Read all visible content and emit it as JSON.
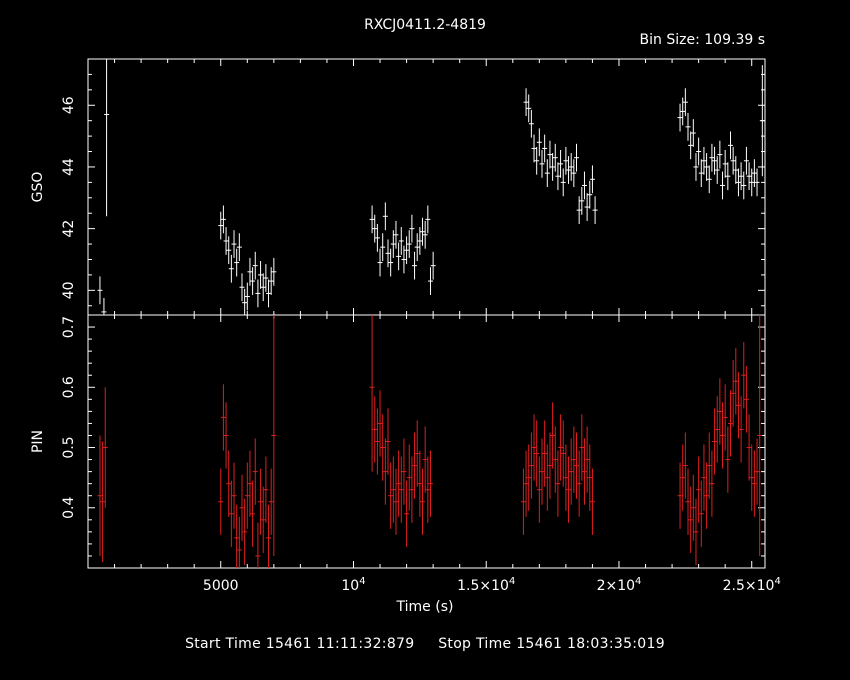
{
  "chart_data": {
    "title": "RXCJ0411.2-4819",
    "bin_size": "Bin Size: 109.39 s",
    "xlabel": "Time (s)",
    "xlim": [
      0,
      25500
    ],
    "x_ticks": [
      {
        "v": 5000,
        "m": "5000",
        "e": ""
      },
      {
        "v": 10000,
        "m": "10",
        "e": "4"
      },
      {
        "v": 15000,
        "m": "1.5×10",
        "e": "4"
      },
      {
        "v": 20000,
        "m": "2×10",
        "e": "4"
      },
      {
        "v": 25000,
        "m": "2.5×10",
        "e": "4"
      }
    ],
    "panels": [
      {
        "name": "GSO",
        "type": "scatter",
        "color": "#ffffff",
        "ylim": [
          39.2,
          47.5
        ],
        "yticks": [
          40,
          42,
          44,
          46
        ],
        "err": 0.45,
        "series": [
          {
            "x": [
              450,
              600
            ],
            "y": [
              40.0,
              39.3
            ]
          },
          {
            "x": [
              700
            ],
            "y": [
              45.7
            ],
            "err": 3.3
          },
          {
            "x": [
              5000,
              5100,
              5200,
              5300,
              5400,
              5500,
              5600,
              5700,
              5800,
              5900,
              6000,
              6100,
              6200,
              6300,
              6400,
              6500,
              6600,
              6700,
              6800,
              6900,
              7000
            ],
            "y": [
              42.1,
              42.3,
              41.6,
              41.3,
              40.7,
              41.5,
              40.9,
              41.4,
              40.1,
              39.6,
              39.8,
              40.6,
              40.3,
              40.8,
              39.9,
              40.5,
              40.1,
              40.4,
              39.9,
              40.3,
              40.6
            ]
          },
          {
            "x": [
              10700,
              10800,
              10900,
              11000,
              11100,
              11200,
              11300,
              11400,
              11500,
              11600,
              11700,
              11800,
              11900,
              12000,
              12100,
              12200,
              12300,
              12400,
              12500,
              12600,
              12700,
              12800,
              12900,
              13000
            ],
            "y": [
              42.3,
              42.0,
              41.7,
              40.9,
              41.4,
              42.4,
              41.2,
              40.9,
              41.5,
              41.8,
              41.1,
              41.6,
              41.0,
              41.3,
              41.5,
              42.0,
              40.8,
              41.4,
              41.6,
              41.9,
              41.8,
              42.3,
              40.3,
              40.8
            ]
          },
          {
            "x": [
              16500,
              16600,
              16700,
              16800,
              16900,
              17000,
              17100,
              17200,
              17300,
              17400,
              17500,
              17600,
              17700,
              17800,
              17900,
              18000,
              18100,
              18200,
              18300,
              18400,
              18500,
              18600,
              18700,
              18800,
              18900,
              19000,
              19100
            ],
            "y": [
              46.1,
              45.9,
              45.4,
              44.6,
              44.2,
              44.8,
              44.1,
              44.6,
              43.8,
              44.4,
              44.0,
              44.3,
              43.7,
              44.1,
              43.5,
              44.2,
              43.9,
              44.0,
              43.8,
              44.3,
              42.6,
              42.9,
              43.4,
              42.7,
              43.1,
              43.6,
              42.6
            ]
          },
          {
            "x": [
              22300,
              22400,
              22500,
              22600,
              22700,
              22800,
              22900,
              23000,
              23100,
              23200,
              23300,
              23400,
              23500,
              23600,
              23700,
              23800,
              23900,
              24000,
              24100,
              24200,
              24300,
              24400,
              24500,
              24600,
              24700,
              24800,
              24900,
              25000,
              25100,
              25200
            ],
            "y": [
              45.6,
              45.8,
              46.1,
              45.3,
              44.7,
              45.1,
              44.0,
              44.5,
              43.8,
              44.2,
              44.0,
              43.6,
              44.3,
              44.2,
              43.9,
              44.4,
              43.4,
              44.1,
              43.7,
              44.7,
              44.2,
              43.9,
              43.5,
              43.7,
              43.4,
              44.2,
              43.7,
              43.5,
              43.8,
              43.5
            ]
          },
          {
            "x": [
              25400
            ],
            "y": [
              45.5
            ],
            "err": 1.8
          }
        ]
      },
      {
        "name": "PIN",
        "type": "scatter",
        "color": "#dd1f1f",
        "ylim": [
          0.3,
          0.72
        ],
        "yticks": [
          0.4,
          0.5,
          0.6,
          0.7
        ],
        "err": 0.055,
        "series": [
          {
            "x": [
              450,
              550,
              650
            ],
            "y": [
              0.42,
              0.41,
              0.5
            ],
            "err": 0.1
          },
          {
            "x": [
              5000,
              5100,
              5200,
              5300,
              5400,
              5500,
              5600,
              5700,
              5800,
              5900,
              6000,
              6100,
              6200,
              6300,
              6400,
              6500,
              6600,
              6700,
              6800,
              6900
            ],
            "y": [
              0.41,
              0.55,
              0.52,
              0.44,
              0.39,
              0.42,
              0.35,
              0.33,
              0.4,
              0.36,
              0.42,
              0.44,
              0.39,
              0.46,
              0.32,
              0.41,
              0.38,
              0.43,
              0.35,
              0.41
            ]
          },
          {
            "x": [
              7000
            ],
            "y": [
              0.52
            ],
            "err": 0.2
          },
          {
            "x": [
              10700
            ],
            "y": [
              0.6
            ],
            "err": 0.14
          },
          {
            "x": [
              10800,
              10900,
              11000,
              11100,
              11200,
              11300,
              11400,
              11500,
              11600,
              11700,
              11800,
              11900,
              12000,
              12100,
              12200,
              12300,
              12400,
              12500,
              12600,
              12700,
              12800,
              12900
            ],
            "y": [
              0.53,
              0.51,
              0.54,
              0.5,
              0.46,
              0.51,
              0.42,
              0.43,
              0.41,
              0.44,
              0.43,
              0.46,
              0.39,
              0.45,
              0.43,
              0.47,
              0.49,
              0.44,
              0.41,
              0.48,
              0.43,
              0.44
            ]
          },
          {
            "x": [
              16400,
              16500,
              16600,
              16700,
              16800,
              16900,
              17000,
              17100,
              17200,
              17300,
              17400,
              17500,
              17600,
              17700,
              17800,
              17900,
              18000,
              18100,
              18200,
              18300,
              18400,
              18500,
              18600,
              18700,
              18800,
              18900,
              19000
            ],
            "y": [
              0.41,
              0.44,
              0.45,
              0.47,
              0.5,
              0.49,
              0.43,
              0.46,
              0.49,
              0.45,
              0.47,
              0.52,
              0.48,
              0.44,
              0.5,
              0.49,
              0.45,
              0.43,
              0.46,
              0.48,
              0.47,
              0.44,
              0.5,
              0.46,
              0.48,
              0.45,
              0.41
            ]
          },
          {
            "x": [
              22300,
              22400,
              22500,
              22600,
              22700,
              22800,
              22900,
              23000,
              23100,
              23200,
              23300,
              23400,
              23500,
              23600,
              23700,
              23800,
              23900,
              24000,
              24100,
              24200,
              24300,
              24400,
              24500,
              24600,
              24700,
              24800,
              24900,
              25000,
              25100,
              25200
            ],
            "y": [
              0.42,
              0.45,
              0.47,
              0.41,
              0.38,
              0.4,
              0.36,
              0.43,
              0.39,
              0.45,
              0.42,
              0.47,
              0.44,
              0.51,
              0.53,
              0.56,
              0.52,
              0.55,
              0.48,
              0.54,
              0.59,
              0.61,
              0.57,
              0.53,
              0.62,
              0.58,
              0.5,
              0.45,
              0.44,
              0.46
            ]
          },
          {
            "x": [
              25300
            ],
            "y": [
              0.52
            ],
            "err": 0.2
          }
        ]
      }
    ]
  },
  "footer": {
    "start_label": "Start Time 15461 11:11:32:879",
    "stop_label": "Stop Time 15461 18:03:35:019"
  }
}
